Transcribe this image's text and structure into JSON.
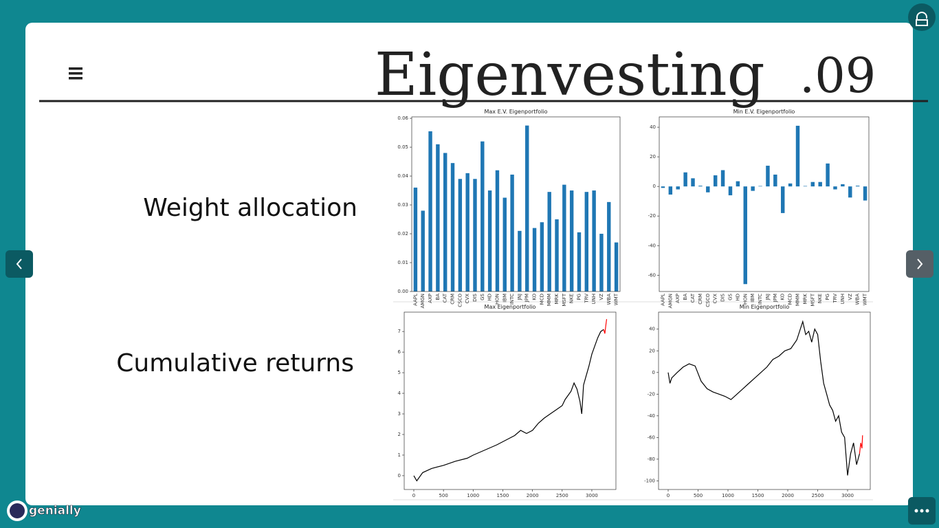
{
  "header": {
    "title": "Eigenvesting",
    "number": ".09"
  },
  "labels": [
    "Weight allocation",
    "Cumulative returns"
  ],
  "brand": "genially",
  "chart_data": [
    {
      "type": "bar",
      "title": "Max E.V. Eigenportfolio",
      "color": "#1f77b4",
      "categories": [
        "AAPL",
        "AMGN",
        "AXP",
        "BA",
        "CAT",
        "CRM",
        "CSCO",
        "CVX",
        "DIS",
        "GS",
        "HD",
        "HON",
        "IBM",
        "INTC",
        "JNJ",
        "JPM",
        "KO",
        "MCD",
        "MMM",
        "MRK",
        "MSFT",
        "NKE",
        "PG",
        "TRV",
        "UNH",
        "VZ",
        "WBA",
        "WMT"
      ],
      "values": [
        0.036,
        0.028,
        0.0555,
        0.051,
        0.048,
        0.0445,
        0.039,
        0.041,
        0.039,
        0.052,
        0.035,
        0.042,
        0.0325,
        0.0405,
        0.021,
        0.0575,
        0.022,
        0.024,
        0.0345,
        0.025,
        0.037,
        0.035,
        0.0205,
        0.0345,
        0.035,
        0.02,
        0.031,
        0.017
      ],
      "ylim": [
        0,
        0.0605
      ],
      "yticks": [
        {
          "value": 0,
          "label": "0.00"
        },
        {
          "value": 0.01,
          "label": "0.01"
        },
        {
          "value": 0.02,
          "label": "0.02"
        },
        {
          "value": 0.03,
          "label": "0.03"
        },
        {
          "value": 0.04,
          "label": "0.04"
        },
        {
          "value": 0.05,
          "label": "0.05"
        },
        {
          "value": 0.06,
          "label": "0.06"
        }
      ]
    },
    {
      "type": "bar",
      "title": "Min E.V. Eigenportfolio",
      "color": "#1f77b4",
      "categories": [
        "AAPL",
        "AMGN",
        "AXP",
        "BA",
        "CAT",
        "CRM",
        "CSCO",
        "CVX",
        "DIS",
        "GS",
        "HD",
        "HON",
        "IBM",
        "INTC",
        "JNJ",
        "JPM",
        "KO",
        "MCD",
        "MMM",
        "MRK",
        "MSFT",
        "NKE",
        "PG",
        "TRV",
        "UNH",
        "VZ",
        "WBA",
        "WMT"
      ],
      "values": [
        -1,
        -5.5,
        -2,
        9.5,
        5.5,
        0.5,
        -4,
        7.5,
        11,
        -6,
        3.5,
        -66,
        -3,
        0.3,
        14,
        8,
        -18,
        2,
        41,
        0.3,
        3,
        3,
        15.5,
        -2,
        1.5,
        -7.5,
        0.5,
        -9.5
      ],
      "ylim": [
        -71,
        47
      ],
      "yticks": [
        -60,
        -40,
        -20,
        0,
        20,
        40
      ]
    },
    {
      "type": "line",
      "title": "Max Eigenportfolio",
      "xlim": [
        -162,
        3406
      ],
      "xticks": [
        0,
        500,
        1000,
        1500,
        2000,
        2500,
        3000
      ],
      "ylim": [
        -0.67,
        7.94
      ],
      "yticks": [
        0,
        1,
        2,
        3,
        4,
        5,
        6,
        7
      ],
      "series": [
        {
          "color": "#000000",
          "x": [
            0,
            50,
            150,
            300,
            500,
            700,
            900,
            1000,
            1200,
            1400,
            1600,
            1700,
            1800,
            1900,
            2000,
            2100,
            2200,
            2300,
            2400,
            2500,
            2550,
            2600,
            2650,
            2700,
            2750,
            2800,
            2830,
            2860,
            2900,
            2950,
            3000,
            3050,
            3100,
            3150,
            3200
          ],
          "values": [
            0,
            -0.25,
            0.15,
            0.35,
            0.5,
            0.7,
            0.85,
            1.0,
            1.25,
            1.5,
            1.8,
            1.95,
            2.2,
            2.05,
            2.2,
            2.55,
            2.8,
            3.0,
            3.2,
            3.4,
            3.7,
            3.9,
            4.1,
            4.5,
            4.2,
            3.6,
            3.0,
            4.4,
            4.8,
            5.3,
            5.9,
            6.3,
            6.7,
            7.0,
            7.1
          ]
        },
        {
          "color": "#ff0000",
          "x": [
            3200,
            3220,
            3240,
            3250
          ],
          "values": [
            7.1,
            6.9,
            7.4,
            7.6
          ]
        }
      ]
    },
    {
      "type": "line",
      "title": "Min Eigenportfolio",
      "xlim": [
        -161,
        3379
      ],
      "xticks": [
        0,
        500,
        1000,
        1500,
        2000,
        2500,
        3000
      ],
      "ylim": [
        -108,
        55.7
      ],
      "yticks": [
        -100,
        -80,
        -60,
        -40,
        -20,
        0,
        20,
        40
      ],
      "series": [
        {
          "color": "#000000",
          "x": [
            0,
            30,
            60,
            150,
            250,
            350,
            450,
            550,
            650,
            750,
            850,
            950,
            1050,
            1150,
            1250,
            1350,
            1450,
            1550,
            1650,
            1750,
            1850,
            1950,
            2050,
            2150,
            2250,
            2300,
            2350,
            2400,
            2450,
            2500,
            2550,
            2600,
            2650,
            2700,
            2750,
            2800,
            2850,
            2900,
            2950,
            3000,
            3050,
            3100,
            3150,
            3200
          ],
          "values": [
            0,
            -10,
            -5,
            0,
            5,
            8,
            6,
            -8,
            -15,
            -18,
            -20,
            -22,
            -25,
            -20,
            -15,
            -10,
            -5,
            0,
            5,
            12,
            15,
            20,
            22,
            30,
            47,
            35,
            38,
            28,
            40,
            35,
            10,
            -10,
            -20,
            -30,
            -35,
            -45,
            -40,
            -55,
            -60,
            -95,
            -75,
            -65,
            -85,
            -75
          ]
        },
        {
          "color": "#ff0000",
          "x": [
            3200,
            3220,
            3240,
            3250
          ],
          "values": [
            -75,
            -65,
            -70,
            -58
          ]
        }
      ]
    }
  ]
}
